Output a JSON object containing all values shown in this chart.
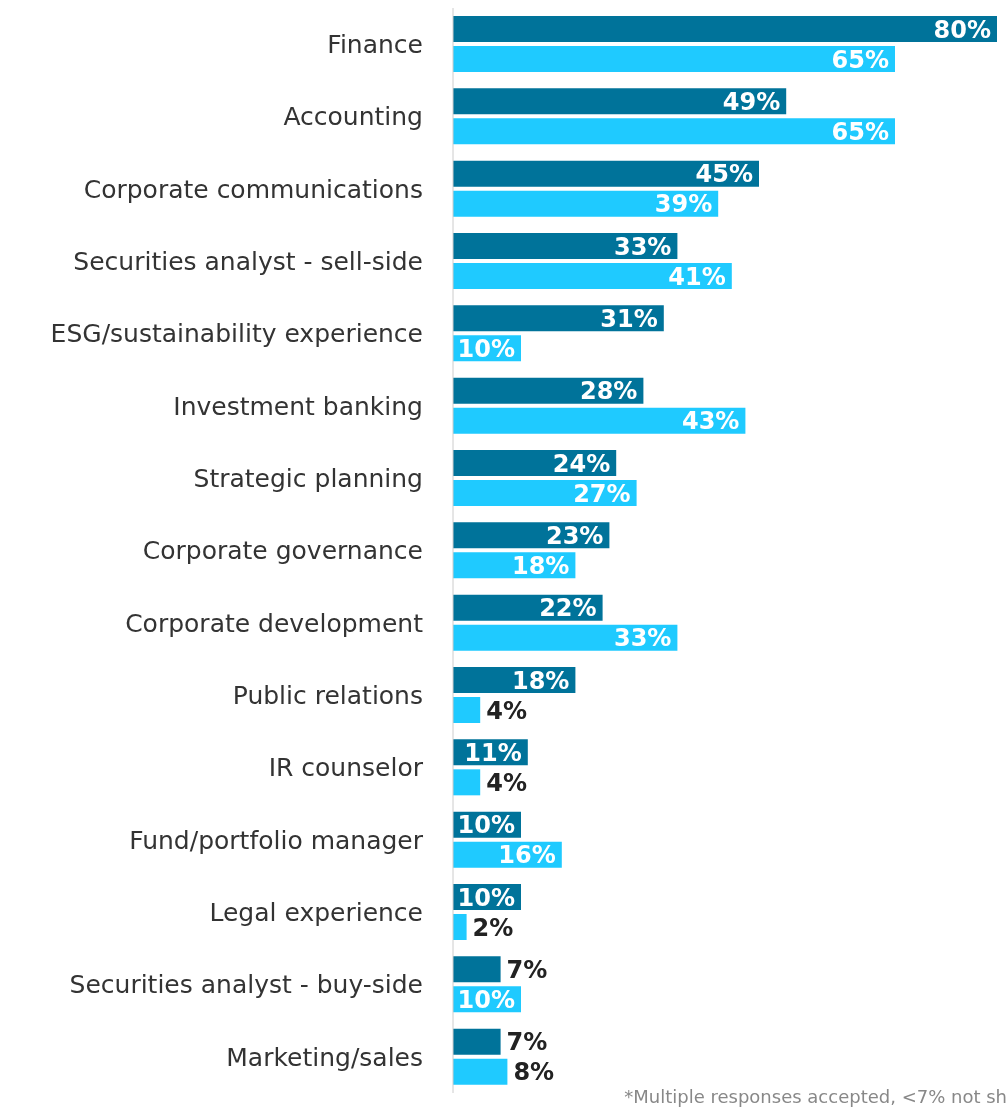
{
  "chart_data": {
    "type": "bar",
    "orientation": "horizontal",
    "data_labels": true,
    "categories": [
      "Finance",
      "Accounting",
      "Corporate communications",
      "Securities analyst - sell-side",
      "ESG/sustainability experience",
      "Investment banking",
      "Strategic planning",
      "Corporate governance",
      "Corporate development",
      "Public relations",
      "IR counselor",
      "Fund/portfolio manager",
      "Legal experience",
      "Securities analyst - buy-side",
      "Marketing/sales"
    ],
    "series": [
      {
        "color": "#00739a",
        "values": [
          80,
          49,
          45,
          33,
          31,
          28,
          24,
          23,
          22,
          18,
          11,
          10,
          10,
          7,
          7
        ],
        "value_labels": [
          "80%",
          "49%",
          "45%",
          "33%",
          "31%",
          "28%",
          "24%",
          "23%",
          "22%",
          "18%",
          "11%",
          "10%",
          "10%",
          "7%",
          "7%"
        ]
      },
      {
        "color": "#1fcaff",
        "values": [
          65,
          65,
          39,
          41,
          10,
          43,
          27,
          18,
          33,
          4,
          4,
          16,
          2,
          10,
          8
        ],
        "value_labels": [
          "65%",
          "65%",
          "39%",
          "41%",
          "10%",
          "43%",
          "27%",
          "18%",
          "33%",
          "4%",
          "4%",
          "16%",
          "2%",
          "10%",
          "8%"
        ]
      }
    ],
    "annotations": [
      "*Multiple responses accepted, <7% not sh"
    ]
  }
}
